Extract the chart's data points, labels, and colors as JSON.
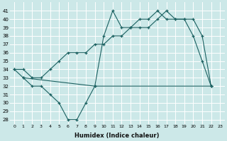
{
  "xlabel": "Humidex (Indice chaleur)",
  "bg_color": "#cce8e8",
  "grid_color": "#ffffff",
  "line_color": "#1a6060",
  "x_ticks": [
    0,
    1,
    2,
    3,
    4,
    5,
    6,
    7,
    8,
    9,
    10,
    11,
    12,
    13,
    14,
    15,
    16,
    17,
    18,
    19,
    20,
    21,
    22,
    23
  ],
  "y_ticks": [
    28,
    29,
    30,
    31,
    32,
    33,
    34,
    35,
    36,
    37,
    38,
    39,
    40,
    41
  ],
  "ylim": [
    27.5,
    42.0
  ],
  "xlim": [
    -0.5,
    23.5
  ],
  "series1_x": [
    0,
    1,
    2,
    3,
    4,
    5,
    6,
    7,
    8,
    9,
    10,
    11,
    12,
    13,
    14,
    15,
    16,
    17,
    18,
    19,
    20,
    21,
    22
  ],
  "series1_y": [
    34,
    33,
    32,
    32,
    31,
    30,
    28,
    28,
    30,
    32,
    38,
    41,
    39,
    39,
    40,
    40,
    41,
    40,
    40,
    40,
    38,
    35,
    32
  ],
  "series2_x": [
    0,
    1,
    2,
    3,
    4,
    5,
    6,
    7,
    8,
    9,
    10,
    11,
    12,
    13,
    14,
    15,
    16,
    17,
    18,
    19,
    20,
    21,
    22
  ],
  "series2_y": [
    34,
    34,
    33,
    33,
    34,
    35,
    36,
    36,
    36,
    37,
    37,
    38,
    38,
    39,
    39,
    39,
    40,
    41,
    40,
    40,
    40,
    38,
    32
  ],
  "series3_x": [
    1,
    9,
    22
  ],
  "series3_y": [
    33,
    32,
    32
  ]
}
